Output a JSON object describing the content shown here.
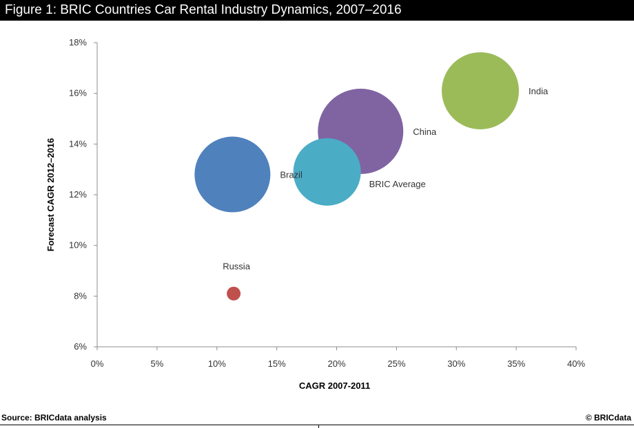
{
  "title": "Figure 1: BRIC Countries Car Rental Industry Dynamics, 2007–2016",
  "footer": {
    "source": "Source: BRICdata analysis",
    "copyright": "© BRICdata"
  },
  "chart_data": {
    "type": "scatter",
    "subtype": "bubble",
    "xlabel": "CAGR 2007-2011",
    "ylabel": "Forecast CAGR 2012–2016",
    "xlim": [
      0,
      40
    ],
    "ylim": [
      6,
      18
    ],
    "x_ticks": [
      0,
      5,
      10,
      15,
      20,
      25,
      30,
      35,
      40
    ],
    "y_ticks": [
      6,
      8,
      10,
      12,
      14,
      16,
      18
    ],
    "x_tick_labels": [
      "0%",
      "5%",
      "10%",
      "15%",
      "20%",
      "25%",
      "30%",
      "35%",
      "40%"
    ],
    "y_tick_labels": [
      "6%",
      "8%",
      "10%",
      "12%",
      "14%",
      "16%",
      "18%"
    ],
    "grid": false,
    "legend": "none",
    "series": [
      {
        "name": "Brazil",
        "x": 11.3,
        "y": 12.8,
        "size": 55,
        "color": "#4f81bd",
        "label_position": "right"
      },
      {
        "name": "Russia",
        "x": 11.4,
        "y": 8.1,
        "size": 10,
        "color": "#c0504d",
        "label_position": "above"
      },
      {
        "name": "China",
        "x": 22.0,
        "y": 14.5,
        "size": 62,
        "color": "#8064a2",
        "label_position": "right"
      },
      {
        "name": "BRIC Average",
        "x": 19.2,
        "y": 12.9,
        "size": 49,
        "color": "#4bacc6",
        "label_position": "below-right"
      },
      {
        "name": "India",
        "x": 32.0,
        "y": 16.1,
        "size": 56,
        "color": "#9bbb59",
        "label_position": "right"
      }
    ]
  }
}
